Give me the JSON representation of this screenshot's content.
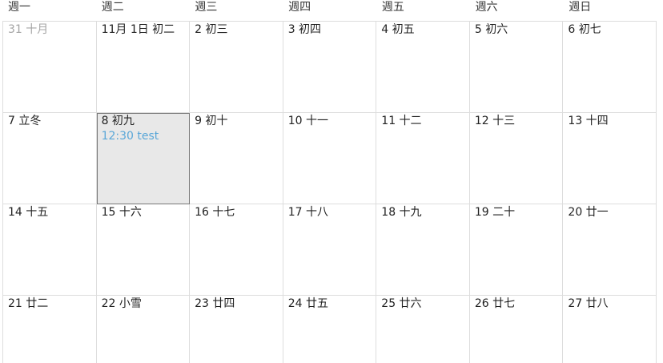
{
  "calendar": {
    "weekdays": [
      "週一",
      "週二",
      "週三",
      "週四",
      "週五",
      "週六",
      "週日"
    ],
    "weeks": [
      {
        "days": [
          {
            "label": "31 十月",
            "other_month": true
          },
          {
            "label": "11月 1日 初二"
          },
          {
            "label": "2 初三"
          },
          {
            "label": "3 初四"
          },
          {
            "label": "4 初五"
          },
          {
            "label": "5 初六"
          },
          {
            "label": "6 初七"
          }
        ]
      },
      {
        "days": [
          {
            "label": "7 立冬"
          },
          {
            "label": "8 初九",
            "today": true,
            "events": [
              "12:30 test"
            ]
          },
          {
            "label": "9 初十"
          },
          {
            "label": "10 十一"
          },
          {
            "label": "11 十二"
          },
          {
            "label": "12 十三"
          },
          {
            "label": "13 十四"
          }
        ]
      },
      {
        "days": [
          {
            "label": "14 十五"
          },
          {
            "label": "15 十六"
          },
          {
            "label": "16 十七"
          },
          {
            "label": "17 十八"
          },
          {
            "label": "18 十九"
          },
          {
            "label": "19 二十"
          },
          {
            "label": "20 廿一"
          }
        ]
      },
      {
        "days": [
          {
            "label": "21 廿二"
          },
          {
            "label": "22 小雪"
          },
          {
            "label": "23 廿四"
          },
          {
            "label": "24 廿五"
          },
          {
            "label": "25 廿六"
          },
          {
            "label": "26 廿七"
          },
          {
            "label": "27 廿八"
          }
        ]
      }
    ],
    "colors": {
      "event": "#5aa7d8",
      "today_background": "#e8e8e8",
      "other_month_text": "#a5a5a5",
      "grid_line": "#dddddd"
    }
  }
}
